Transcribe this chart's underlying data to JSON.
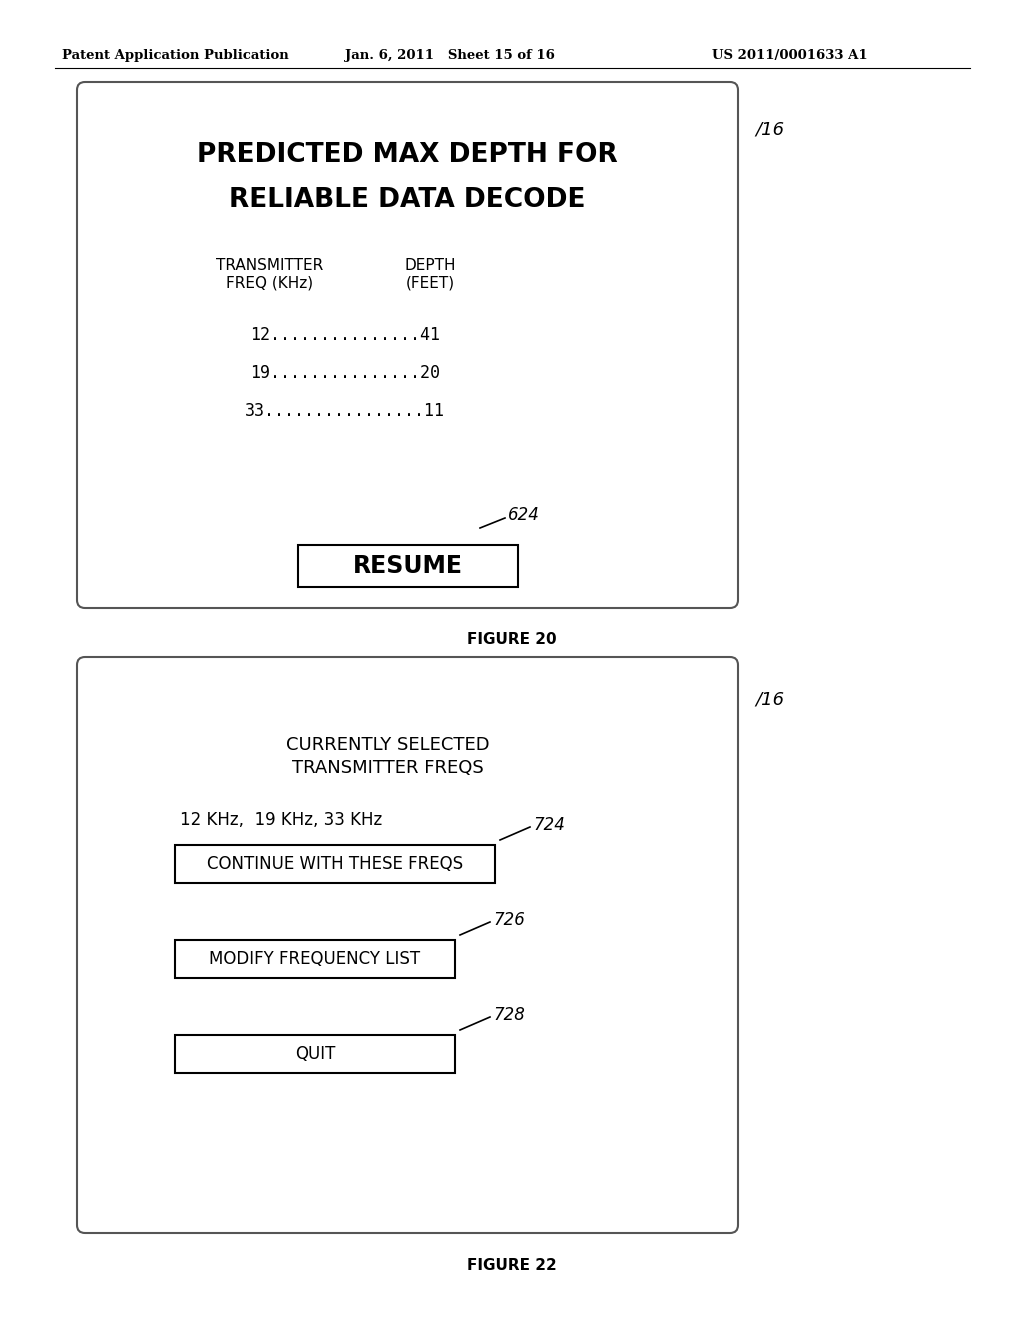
{
  "bg_color": "#ffffff",
  "header_left": "Patent Application Publication",
  "header_mid": "Jan. 6, 2011   Sheet 15 of 16",
  "header_right": "US 2011/0001633 A1",
  "fig1_title_line1": "PREDICTED MAX DEPTH FOR",
  "fig1_title_line2": "RELIABLE DATA DECODE",
  "fig1_col1_header1": "TRANSMITTER",
  "fig1_col1_header2": "FREQ (KHz)",
  "fig1_col2_header1": "DEPTH",
  "fig1_col2_header2": "(FEET)",
  "fig1_row1": "12...............41",
  "fig1_row2": "19...............20",
  "fig1_row3": "33................11",
  "fig1_button_label": "RESUME",
  "fig1_button_annotation": "624",
  "fig1_label": "16",
  "fig1_caption": "FIGURE 20",
  "fig2_title_line1": "CURRENTLY SELECTED",
  "fig2_title_line2": "TRANSMITTER FREQS",
  "fig2_freq_text": "12 KHz,  19 KHz, 33 KHz",
  "fig2_btn1": "CONTINUE WITH THESE FREQS",
  "fig2_btn1_annotation": "724",
  "fig2_btn2": "MODIFY FREQUENCY LIST",
  "fig2_btn2_annotation": "726",
  "fig2_btn3": "QUIT",
  "fig2_btn3_annotation": "728",
  "fig2_label": "16",
  "fig2_caption": "FIGURE 22"
}
